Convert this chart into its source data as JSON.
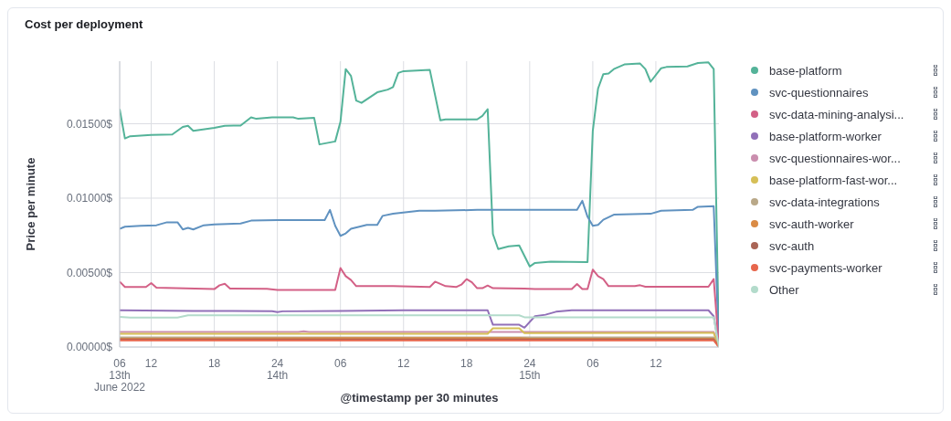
{
  "chart_data": {
    "type": "line",
    "title": "Cost per deployment",
    "xlabel": "@timestamp per 30 minutes",
    "ylabel": "Price per minute",
    "xlim": [
      "2022-06-13T09:00",
      "2022-06-15T18:00"
    ],
    "xticks": [
      {
        "value": "2022-06-13T09:00",
        "label": "06\n13th\nJune 2022"
      },
      {
        "value": "2022-06-13T12:00",
        "label": "12"
      },
      {
        "value": "2022-06-13T18:00",
        "label": "18"
      },
      {
        "value": "2022-06-14T00:00",
        "label": "24\n14th"
      },
      {
        "value": "2022-06-14T06:00",
        "label": "06"
      },
      {
        "value": "2022-06-14T12:00",
        "label": "12"
      },
      {
        "value": "2022-06-14T18:00",
        "label": "18"
      },
      {
        "value": "2022-06-15T00:00",
        "label": "24\n15th"
      },
      {
        "value": "2022-06-15T06:00",
        "label": "06"
      },
      {
        "value": "2022-06-15T12:00",
        "label": "12"
      }
    ],
    "ylim": [
      0,
      0.0192
    ],
    "yticks": [
      {
        "value": 0,
        "label": "0.00000$"
      },
      {
        "value": 0.005,
        "label": "0.00500$"
      },
      {
        "value": 0.01,
        "label": "0.01000$"
      },
      {
        "value": 0.015,
        "label": "0.01500$"
      }
    ],
    "grid": true,
    "legend": "right",
    "marker": "none",
    "line_style": "solid",
    "series": [
      {
        "name": "base-platform",
        "color": "#54b399",
        "x": [
          "2022-06-13T09:00",
          "2022-06-13T09:30",
          "2022-06-13T10:00",
          "2022-06-13T12:00",
          "2022-06-13T14:00",
          "2022-06-13T15:00",
          "2022-06-13T15:30",
          "2022-06-13T16:00",
          "2022-06-13T18:00",
          "2022-06-13T19:00",
          "2022-06-13T20:30",
          "2022-06-13T21:30",
          "2022-06-13T22:00",
          "2022-06-13T23:30",
          "2022-06-14T01:30",
          "2022-06-14T02:00",
          "2022-06-14T03:30",
          "2022-06-14T04:00",
          "2022-06-14T05:30",
          "2022-06-14T06:00",
          "2022-06-14T06:30",
          "2022-06-14T07:00",
          "2022-06-14T07:30",
          "2022-06-14T08:00",
          "2022-06-14T09:30",
          "2022-06-14T10:30",
          "2022-06-14T11:00",
          "2022-06-14T11:30",
          "2022-06-14T12:00",
          "2022-06-14T14:30",
          "2022-06-14T15:30",
          "2022-06-14T16:00",
          "2022-06-14T19:00",
          "2022-06-14T19:30",
          "2022-06-14T20:00",
          "2022-06-14T20:30",
          "2022-06-14T21:00",
          "2022-06-14T22:00",
          "2022-06-14T23:00",
          "2022-06-15T00:00",
          "2022-06-15T00:30",
          "2022-06-15T02:00",
          "2022-06-15T05:30",
          "2022-06-15T06:00",
          "2022-06-15T06:30",
          "2022-06-15T07:00",
          "2022-06-15T07:30",
          "2022-06-15T08:00",
          "2022-06-15T09:00",
          "2022-06-15T10:30",
          "2022-06-15T11:00",
          "2022-06-15T11:30",
          "2022-06-15T12:30",
          "2022-06-15T13:00",
          "2022-06-15T15:00",
          "2022-06-15T16:00",
          "2022-06-15T17:00",
          "2022-06-15T17:30",
          "2022-06-15T18:00"
        ],
        "values": [
          0.01598,
          0.01401,
          0.01416,
          0.01424,
          0.01428,
          0.01478,
          0.01486,
          0.01452,
          0.01472,
          0.01486,
          0.01488,
          0.01543,
          0.01533,
          0.01543,
          0.01543,
          0.01533,
          0.01539,
          0.01361,
          0.01381,
          0.01513,
          0.01867,
          0.01821,
          0.01655,
          0.0164,
          0.01711,
          0.01729,
          0.01746,
          0.01841,
          0.01853,
          0.01861,
          0.01523,
          0.01529,
          0.01529,
          0.01553,
          0.01598,
          0.00759,
          0.00658,
          0.00676,
          0.00682,
          0.00541,
          0.00565,
          0.00573,
          0.00571,
          0.01452,
          0.01736,
          0.01833,
          0.01837,
          0.01867,
          0.01898,
          0.01904,
          0.01867,
          0.01782,
          0.01873,
          0.01881,
          0.01885,
          0.01908,
          0.01912,
          0.01867,
          0
        ]
      },
      {
        "name": "svc-questionnaires",
        "color": "#6092c0",
        "x": [
          "2022-06-13T09:00",
          "2022-06-13T09:30",
          "2022-06-13T11:00",
          "2022-06-13T12:30",
          "2022-06-13T13:30",
          "2022-06-13T14:30",
          "2022-06-13T15:00",
          "2022-06-13T15:30",
          "2022-06-13T16:00",
          "2022-06-13T17:00",
          "2022-06-13T18:00",
          "2022-06-13T20:30",
          "2022-06-13T21:30",
          "2022-06-14T00:00",
          "2022-06-14T04:30",
          "2022-06-14T05:00",
          "2022-06-14T05:30",
          "2022-06-14T06:00",
          "2022-06-14T06:30",
          "2022-06-14T07:00",
          "2022-06-14T08:30",
          "2022-06-14T09:30",
          "2022-06-14T10:00",
          "2022-06-14T11:00",
          "2022-06-14T13:30",
          "2022-06-14T15:00",
          "2022-06-14T19:00",
          "2022-06-15T04:30",
          "2022-06-15T05:00",
          "2022-06-15T05:30",
          "2022-06-15T06:00",
          "2022-06-15T06:30",
          "2022-06-15T07:00",
          "2022-06-15T08:00",
          "2022-06-15T11:30",
          "2022-06-15T12:30",
          "2022-06-15T15:30",
          "2022-06-15T16:00",
          "2022-06-15T17:30",
          "2022-06-15T18:00"
        ],
        "values": [
          0.00794,
          0.00808,
          0.00814,
          0.00818,
          0.00838,
          0.00838,
          0.0079,
          0.008,
          0.0079,
          0.00818,
          0.00824,
          0.0083,
          0.00849,
          0.00853,
          0.00853,
          0.00921,
          0.00814,
          0.00747,
          0.00763,
          0.00794,
          0.0082,
          0.0082,
          0.00881,
          0.00895,
          0.00915,
          0.00915,
          0.00921,
          0.00921,
          0.00982,
          0.00875,
          0.00814,
          0.0082,
          0.00855,
          0.00889,
          0.00895,
          0.00915,
          0.00921,
          0.00942,
          0.00946,
          0
        ]
      },
      {
        "name": "svc-data-mining-analysi...",
        "color": "#d36086",
        "x": [
          "2022-06-13T09:00",
          "2022-06-13T09:30",
          "2022-06-13T11:30",
          "2022-06-13T12:00",
          "2022-06-13T12:30",
          "2022-06-13T18:00",
          "2022-06-13T18:30",
          "2022-06-13T19:00",
          "2022-06-13T19:30",
          "2022-06-13T23:00",
          "2022-06-14T00:00",
          "2022-06-14T05:30",
          "2022-06-14T06:00",
          "2022-06-14T06:30",
          "2022-06-14T07:00",
          "2022-06-14T07:30",
          "2022-06-14T11:00",
          "2022-06-14T14:30",
          "2022-06-14T15:00",
          "2022-06-14T16:00",
          "2022-06-14T17:00",
          "2022-06-14T17:30",
          "2022-06-14T18:00",
          "2022-06-14T18:30",
          "2022-06-14T19:00",
          "2022-06-14T19:30",
          "2022-06-14T20:00",
          "2022-06-14T20:30",
          "2022-06-14T23:30",
          "2022-06-15T00:30",
          "2022-06-15T04:00",
          "2022-06-15T04:30",
          "2022-06-15T05:00",
          "2022-06-15T05:30",
          "2022-06-15T06:00",
          "2022-06-15T06:30",
          "2022-06-15T07:00",
          "2022-06-15T07:30",
          "2022-06-15T10:00",
          "2022-06-15T10:30",
          "2022-06-15T11:00",
          "2022-06-15T17:00",
          "2022-06-15T17:30",
          "2022-06-15T18:00"
        ],
        "values": [
          0.00439,
          0.00403,
          0.00403,
          0.00429,
          0.00399,
          0.00389,
          0.00415,
          0.00425,
          0.00393,
          0.00391,
          0.00383,
          0.00383,
          0.00531,
          0.00476,
          0.0045,
          0.00409,
          0.00409,
          0.00403,
          0.00439,
          0.00409,
          0.00403,
          0.00419,
          0.00456,
          0.00435,
          0.00395,
          0.00395,
          0.00413,
          0.00395,
          0.00393,
          0.00389,
          0.00389,
          0.00423,
          0.00389,
          0.00389,
          0.0052,
          0.00476,
          0.00456,
          0.00409,
          0.00409,
          0.00415,
          0.00405,
          0.00405,
          0.00456,
          0
        ]
      },
      {
        "name": "base-platform-worker",
        "color": "#9170b8",
        "x": [
          "2022-06-13T09:00",
          "2022-06-13T16:00",
          "2022-06-13T23:30",
          "2022-06-14T00:00",
          "2022-06-14T00:30",
          "2022-06-14T06:00",
          "2022-06-14T12:00",
          "2022-06-14T20:00",
          "2022-06-14T20:30",
          "2022-06-14T23:00",
          "2022-06-14T23:30",
          "2022-06-15T00:30",
          "2022-06-15T01:30",
          "2022-06-15T02:30",
          "2022-06-15T04:00",
          "2022-06-15T17:00",
          "2022-06-15T17:30",
          "2022-06-15T18:00"
        ],
        "values": [
          0.00247,
          0.00243,
          0.00241,
          0.00235,
          0.0024,
          0.00243,
          0.00247,
          0.00247,
          0.0015,
          0.0015,
          0.0013,
          0.00207,
          0.00217,
          0.00237,
          0.00247,
          0.00247,
          0.00207,
          0
        ]
      },
      {
        "name": "svc-questionnaires-wor...",
        "color": "#ca8eae",
        "x": [
          "2022-06-13T09:00",
          "2022-06-14T02:00",
          "2022-06-14T02:30",
          "2022-06-14T03:00",
          "2022-06-15T17:30",
          "2022-06-15T18:00"
        ],
        "values": [
          0.00101,
          0.00101,
          0.00106,
          0.00101,
          0.00101,
          0
        ]
      },
      {
        "name": "base-platform-fast-wor...",
        "color": "#d6bf57",
        "x": [
          "2022-06-13T09:00",
          "2022-06-14T20:00",
          "2022-06-14T20:30",
          "2022-06-14T23:00",
          "2022-06-14T23:30",
          "2022-06-15T17:30",
          "2022-06-15T18:00"
        ],
        "values": [
          0.00089,
          0.00089,
          0.00126,
          0.00126,
          0.00093,
          0.00095,
          0
        ]
      },
      {
        "name": "svc-data-integrations",
        "color": "#b9a888",
        "x": [
          "2022-06-13T09:00",
          "2022-06-15T17:30",
          "2022-06-15T18:00"
        ],
        "values": [
          0.00065,
          0.00065,
          0
        ]
      },
      {
        "name": "svc-auth-worker",
        "color": "#da8b45",
        "x": [
          "2022-06-13T09:00",
          "2022-06-13T20:00",
          "2022-06-14T06:00",
          "2022-06-14T23:00",
          "2022-06-15T00:00",
          "2022-06-15T17:30",
          "2022-06-15T18:00"
        ],
        "values": [
          0.00055,
          0.00057,
          0.0006,
          0.0006,
          0.00055,
          0.00055,
          0
        ]
      },
      {
        "name": "svc-auth",
        "color": "#aa6556",
        "x": [
          "2022-06-13T09:00",
          "2022-06-15T17:30",
          "2022-06-15T18:00"
        ],
        "values": [
          0.0005,
          0.0005,
          0
        ]
      },
      {
        "name": "svc-payments-worker",
        "color": "#e7664c",
        "x": [
          "2022-06-13T09:00",
          "2022-06-15T17:30",
          "2022-06-15T18:00"
        ],
        "values": [
          0.00045,
          0.00045,
          0
        ]
      },
      {
        "name": "Other",
        "color": "#b3dbcb",
        "x": [
          "2022-06-13T09:00",
          "2022-06-13T10:00",
          "2022-06-13T14:30",
          "2022-06-13T15:30",
          "2022-06-14T12:00",
          "2022-06-14T23:00",
          "2022-06-14T23:30",
          "2022-06-15T17:30",
          "2022-06-15T18:00"
        ],
        "values": [
          0.00203,
          0.00198,
          0.00198,
          0.00213,
          0.00213,
          0.00213,
          0.002,
          0.002,
          0
        ]
      }
    ]
  }
}
